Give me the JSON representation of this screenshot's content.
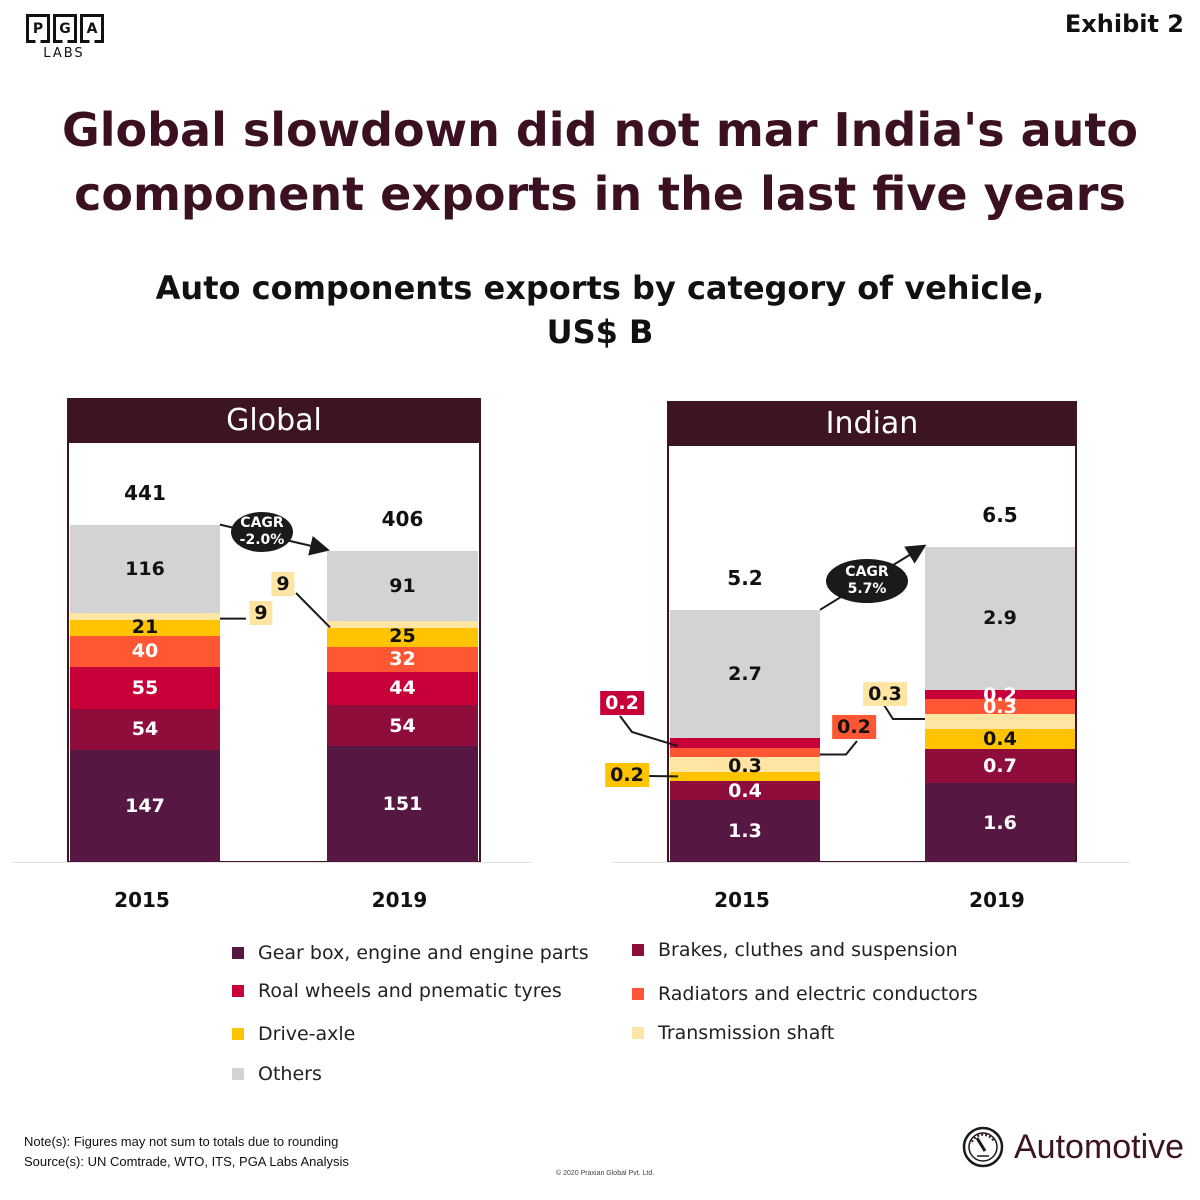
{
  "header": {
    "logo_letters": [
      "P",
      "G",
      "A"
    ],
    "logo_sub": "LABS",
    "exhibit": "Exhibit 2",
    "title_line1": "Global slowdown did not mar India's auto",
    "title_line2": "component exports in the last five years",
    "subtitle_line1": "Auto components exports by category of vehicle,",
    "subtitle_line2": "US$ B"
  },
  "colors": {
    "header_bg": "#3c1520",
    "title": "#3b1020",
    "Gear box, engine and engine parts": "#561742",
    "Brakes, cluthes and suspension": "#8e0d3a",
    "Roal wheels and pnematic tyres": "#c70039",
    "Radiators and electric conductors": "#ff5733",
    "Drive-axle": "#ffc300",
    "Transmission shaft": "#ffe5a3",
    "Others": "#d2d3d5"
  },
  "chart_data": [
    {
      "type": "bar",
      "stacked": true,
      "title": "Global",
      "categories": [
        "2015",
        "2019"
      ],
      "unit": "US$ B",
      "totals": [
        441,
        406
      ],
      "cagr_label": "CAGR",
      "cagr_value": "-2.0%",
      "series": [
        {
          "name": "Gear box, engine and engine parts",
          "values": [
            147,
            151
          ]
        },
        {
          "name": "Brakes, cluthes and suspension",
          "values": [
            54,
            54
          ]
        },
        {
          "name": "Roal wheels and pnematic tyres",
          "values": [
            55,
            44
          ]
        },
        {
          "name": "Radiators and electric conductors",
          "values": [
            40,
            32
          ]
        },
        {
          "name": "Drive-axle",
          "values": [
            21,
            25
          ]
        },
        {
          "name": "Transmission shaft",
          "values": [
            9,
            9
          ]
        },
        {
          "name": "Others",
          "values": [
            116,
            91
          ]
        }
      ],
      "callouts": [
        "Transmission shaft"
      ]
    },
    {
      "type": "bar",
      "stacked": true,
      "title": "Indian",
      "categories": [
        "2015",
        "2019"
      ],
      "unit": "US$ B",
      "totals": [
        5.2,
        6.5
      ],
      "cagr_label": "CAGR",
      "cagr_value": "5.7%",
      "series": [
        {
          "name": "Gear box, engine and engine parts",
          "values": [
            1.3,
            1.6
          ]
        },
        {
          "name": "Brakes, cluthes and suspension",
          "values": [
            0.4,
            0.7
          ]
        },
        {
          "name": "Drive-axle",
          "values": [
            0.2,
            0.4
          ]
        },
        {
          "name": "Transmission shaft",
          "values": [
            0.3,
            0.3
          ]
        },
        {
          "name": "Radiators and electric conductors",
          "values": [
            0.2,
            0.3
          ]
        },
        {
          "name": "Roal wheels and pnematic tyres",
          "values": [
            0.2,
            0.2
          ]
        },
        {
          "name": "Others",
          "values": [
            2.7,
            2.9
          ]
        }
      ],
      "callouts": []
    }
  ],
  "legend": [
    "Gear box, engine and engine parts",
    "Brakes, cluthes and suspension",
    "Roal wheels and pnematic tyres",
    "Radiators and electric conductors",
    "Drive-axle",
    "Transmission shaft",
    "Others"
  ],
  "footer": {
    "note": "Note(s): Figures may not sum to totals due to rounding",
    "source": "Source(s): UN Comtrade, WTO, ITS, PGA Labs Analysis",
    "copyright": "© 2020 Praxian Global Pvt. Ltd.",
    "brand": "Automotive"
  }
}
